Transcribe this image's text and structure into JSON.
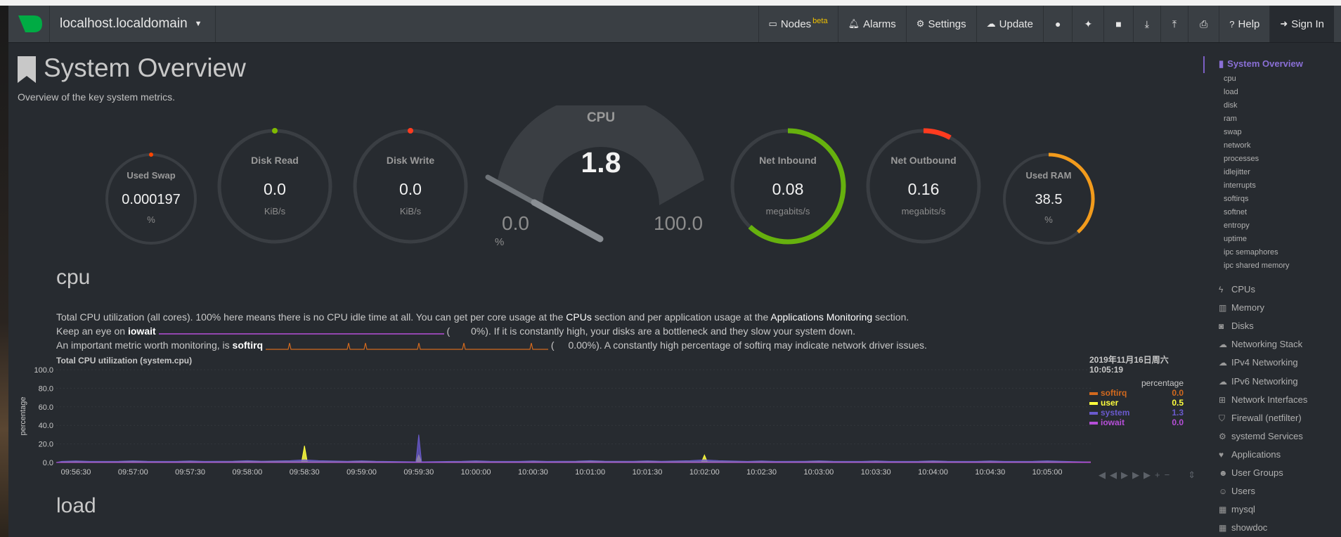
{
  "navbar": {
    "hostname": "localhost.localdomain",
    "items": [
      {
        "label": "Nodes",
        "sup": "beta",
        "icon": "monitor-icon"
      },
      {
        "label": "Alarms",
        "icon": "bell-icon"
      },
      {
        "label": "Settings",
        "icon": "gear-icon"
      },
      {
        "label": "Update",
        "icon": "cloud-download-icon"
      },
      {
        "label": "Help",
        "icon": "question-icon"
      },
      {
        "label": "Sign In",
        "icon": "sign-in-icon"
      }
    ],
    "icon_buttons": [
      "github-icon",
      "twitter-icon",
      "facebook-icon",
      "download-icon",
      "upload-icon",
      "print-icon"
    ]
  },
  "page": {
    "title": "System Overview",
    "subtitle": "Overview of the key system metrics."
  },
  "gauges": {
    "used_swap": {
      "label": "Used Swap",
      "value": "0.000197",
      "unit": "%",
      "fill": 0.0
    },
    "disk_read": {
      "label": "Disk Read",
      "value": "0.0",
      "unit": "KiB/s",
      "fill": 0.0
    },
    "disk_write": {
      "label": "Disk Write",
      "value": "0.0",
      "unit": "KiB/s",
      "fill": 0.0
    },
    "cpu": {
      "label": "CPU",
      "value": "1.8",
      "min": "0.0",
      "max": "100.0",
      "unit": "%"
    },
    "net_inbound": {
      "label": "Net Inbound",
      "value": "0.08",
      "unit": "megabits/s",
      "fill": 0.62
    },
    "net_outbound": {
      "label": "Net Outbound",
      "value": "0.16",
      "unit": "megabits/s",
      "fill": 0.08
    },
    "used_ram": {
      "label": "Used RAM",
      "value": "38.5",
      "unit": "%",
      "fill": 0.385
    },
    "colors": {
      "swap": "#ff4500",
      "disk_read": "#7fba00",
      "disk_write": "#ff3b1f",
      "inbound": "#66b10e",
      "outbound": "#ff3b1f",
      "ram": "#f29b1c",
      "track": "#3a3e43"
    }
  },
  "cpu_section": {
    "title": "cpu",
    "line1_a": "Total CPU utilization (all cores). 100% here means there is no CPU idle time at all. You can get per core usage at the ",
    "line1_cpus": "CPUs",
    "line1_b": " section and per application usage at the ",
    "line1_apps": "Applications Monitoring",
    "line1_c": " section.",
    "line2_a": "Keep an eye on ",
    "line2_iowait": "iowait",
    "line2_open": "(",
    "line2_pct": "0%). If it is constantly high, your disks are a bottleneck and they slow your system down.",
    "line3_a": "An important metric worth monitoring, is ",
    "line3_softirq": "softirq",
    "line3_open": "(",
    "line3_pct": "0.00%). A constantly high percentage of softirq may indicate network driver issues."
  },
  "chart": {
    "title": "Total CPU utilization (system.cpu)",
    "legend_date": "2019年11月16日周六",
    "legend_time": "10:05:19",
    "legend_header": "percentage",
    "legend": [
      {
        "name": "softirq",
        "value": "0.0",
        "color": "#d2691e"
      },
      {
        "name": "user",
        "value": "0.5",
        "color": "#ffff3d"
      },
      {
        "name": "system",
        "value": "1.3",
        "color": "#6a5acd"
      },
      {
        "name": "iowait",
        "value": "0.0",
        "color": "#b64fd8"
      }
    ]
  },
  "chart_data": {
    "type": "area",
    "title": "Total CPU utilization (system.cpu)",
    "ylabel": "percentage",
    "ylim": [
      0,
      100
    ],
    "yticks": [
      "100.0",
      "80.0",
      "60.0",
      "40.0",
      "20.0",
      "0.0"
    ],
    "x": [
      "09:56:30",
      "09:57:00",
      "09:57:30",
      "09:58:00",
      "09:58:30",
      "09:59:00",
      "09:59:30",
      "10:00:00",
      "10:00:30",
      "10:01:00",
      "10:01:30",
      "10:02:00",
      "10:02:30",
      "10:03:00",
      "10:03:30",
      "10:04:00",
      "10:04:30",
      "10:05:00"
    ],
    "series": [
      {
        "name": "user",
        "values": [
          0.5,
          0.6,
          0.5,
          0.7,
          18,
          0.6,
          8,
          0.5,
          0.5,
          0.7,
          0.6,
          8,
          0.5,
          0.6,
          0.5,
          0.6,
          0.5,
          0.5
        ]
      },
      {
        "name": "system",
        "values": [
          1.2,
          1.3,
          1.2,
          1.4,
          2,
          1.3,
          30,
          1.3,
          1.2,
          1.4,
          1.3,
          2,
          1.2,
          1.3,
          1.2,
          1.3,
          1.2,
          1.3
        ]
      },
      {
        "name": "softirq",
        "values": [
          0,
          0,
          0,
          0,
          0,
          0,
          0,
          0,
          0,
          0,
          0,
          0,
          0,
          0,
          0,
          0,
          0,
          0
        ]
      },
      {
        "name": "iowait",
        "values": [
          0,
          0,
          0,
          0,
          0,
          0,
          0,
          0,
          0,
          0,
          0,
          0,
          0,
          0,
          0,
          0,
          0,
          0
        ]
      }
    ]
  },
  "next_section": {
    "title": "load"
  },
  "sidebar": {
    "active": "System Overview",
    "subitems": [
      "cpu",
      "load",
      "disk",
      "ram",
      "swap",
      "network",
      "processes",
      "idlejitter",
      "interrupts",
      "softirqs",
      "softnet",
      "entropy",
      "uptime",
      "ipc semaphores",
      "ipc shared memory"
    ],
    "sections": [
      {
        "label": "CPUs",
        "icon": "bolt-icon"
      },
      {
        "label": "Memory",
        "icon": "memory-icon"
      },
      {
        "label": "Disks",
        "icon": "hdd-icon"
      },
      {
        "label": "Networking Stack",
        "icon": "cloud-icon"
      },
      {
        "label": "IPv4 Networking",
        "icon": "cloud-icon"
      },
      {
        "label": "IPv6 Networking",
        "icon": "cloud-icon"
      },
      {
        "label": "Network Interfaces",
        "icon": "sitemap-icon"
      },
      {
        "label": "Firewall (netfilter)",
        "icon": "shield-icon"
      },
      {
        "label": "systemd Services",
        "icon": "cogs-icon"
      },
      {
        "label": "Applications",
        "icon": "heartbeat-icon"
      },
      {
        "label": "User Groups",
        "icon": "users-icon"
      },
      {
        "label": "Users",
        "icon": "user-icon"
      },
      {
        "label": "mysql",
        "icon": "grid-icon"
      },
      {
        "label": "showdoc",
        "icon": "grid-icon"
      }
    ]
  }
}
